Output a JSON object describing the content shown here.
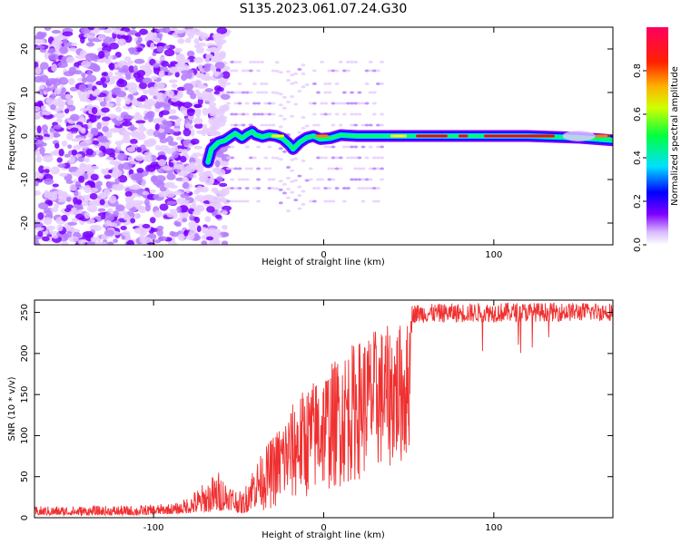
{
  "title": "S135.2023.061.07.24.G30",
  "spectrogram": {
    "type": "heatmap",
    "xlabel": "Height of straight line (km)",
    "ylabel": "Frequency (Hz)",
    "xlim": [
      -170,
      170
    ],
    "ylim": [
      -25,
      25
    ],
    "x_ticks": [
      -100,
      0,
      100
    ],
    "y_ticks": [
      20,
      10,
      0,
      -10,
      -20
    ],
    "colorbar_label": "Normalized spectral amplitude",
    "colorbar_ticks": [
      0.0,
      0.2,
      0.4,
      0.6,
      0.8
    ],
    "colorbar_range": [
      0,
      1
    ],
    "colors": [
      "#e6ccff",
      "#b57bff",
      "#7a00ff",
      "#0010ff",
      "#00d8ff",
      "#00ff60",
      "#ffff00",
      "#ff8000",
      "#ff0000",
      "#ff0077"
    ],
    "ridge": [
      {
        "x": -68,
        "y": -6.0
      },
      {
        "x": -66,
        "y": -3.0
      },
      {
        "x": -62,
        "y": -1.5
      },
      {
        "x": -58,
        "y": -1.0
      },
      {
        "x": -55,
        "y": -0.2
      },
      {
        "x": -52,
        "y": 0.6
      },
      {
        "x": -48,
        "y": -0.5
      },
      {
        "x": -45,
        "y": 0.4
      },
      {
        "x": -42,
        "y": 1.0
      },
      {
        "x": -40,
        "y": 0.3
      },
      {
        "x": -36,
        "y": -0.2
      },
      {
        "x": -32,
        "y": 0.2
      },
      {
        "x": -28,
        "y": 0.0
      },
      {
        "x": -24,
        "y": -0.6
      },
      {
        "x": -20,
        "y": -2.0
      },
      {
        "x": -18,
        "y": -3.0
      },
      {
        "x": -16,
        "y": -2.2
      },
      {
        "x": -14,
        "y": -1.4
      },
      {
        "x": -10,
        "y": -0.4
      },
      {
        "x": -6,
        "y": 0.0
      },
      {
        "x": -2,
        "y": -0.7
      },
      {
        "x": 4,
        "y": -0.5
      },
      {
        "x": 10,
        "y": 0.2
      },
      {
        "x": 20,
        "y": 0.0
      },
      {
        "x": 40,
        "y": 0.0
      },
      {
        "x": 80,
        "y": 0.0
      },
      {
        "x": 120,
        "y": 0.0
      },
      {
        "x": 150,
        "y": -0.4
      },
      {
        "x": 170,
        "y": -1.0
      }
    ]
  },
  "snr": {
    "type": "line",
    "xlabel": "Height of straight line (km)",
    "ylabel": "SNR (10 * v/v)",
    "xlim": [
      -170,
      170
    ],
    "ylim": [
      0,
      265
    ],
    "x_ticks": [
      -100,
      0,
      100
    ],
    "y_ticks": [
      0,
      50,
      100,
      150,
      200,
      250
    ],
    "color": "#f03030",
    "envelope": [
      {
        "x": -170,
        "low": 3,
        "high": 14
      },
      {
        "x": -110,
        "low": 3,
        "high": 15
      },
      {
        "x": -85,
        "low": 5,
        "high": 18
      },
      {
        "x": -72,
        "low": 6,
        "high": 40
      },
      {
        "x": -62,
        "low": 8,
        "high": 58
      },
      {
        "x": -56,
        "low": 10,
        "high": 45
      },
      {
        "x": -48,
        "low": 5,
        "high": 30
      },
      {
        "x": -42,
        "low": 8,
        "high": 60
      },
      {
        "x": -30,
        "low": 10,
        "high": 100
      },
      {
        "x": -15,
        "low": 20,
        "high": 150
      },
      {
        "x": 0,
        "low": 30,
        "high": 180
      },
      {
        "x": 15,
        "low": 40,
        "high": 210
      },
      {
        "x": 30,
        "low": 55,
        "high": 230
      },
      {
        "x": 50,
        "low": 65,
        "high": 240
      },
      {
        "x": 52,
        "low": 225,
        "high": 260
      },
      {
        "x": 100,
        "low": 225,
        "high": 262
      },
      {
        "x": 170,
        "low": 228,
        "high": 262
      }
    ]
  }
}
